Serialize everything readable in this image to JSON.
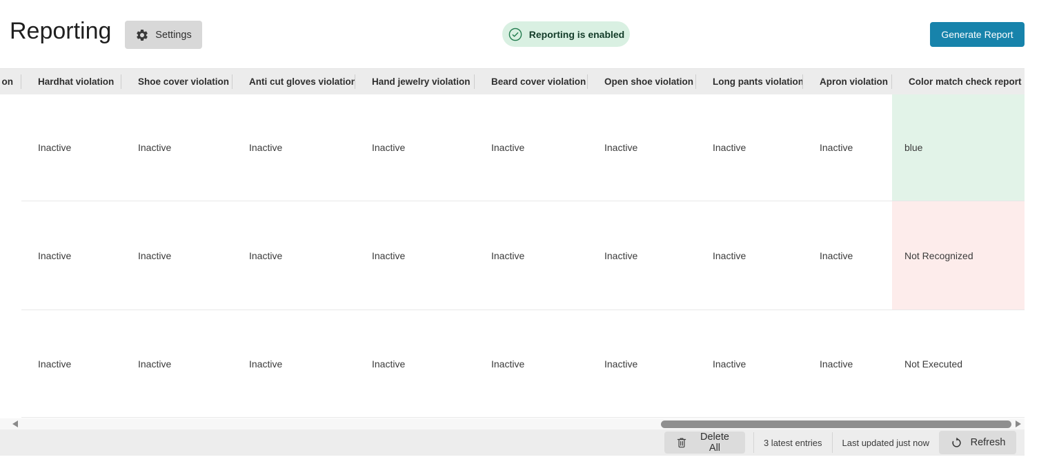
{
  "header": {
    "title": "Reporting",
    "settings_label": "Settings",
    "status_badge": "Reporting is enabled",
    "generate_report_label": "Generate Report"
  },
  "table": {
    "columns": [
      "on",
      "Hardhat violation",
      "Shoe cover violation",
      "Anti cut gloves violation",
      "Hand jewelry violation",
      "Beard cover violation",
      "Open shoe violation",
      "Long pants violation",
      "Apron violation",
      "Color match check report"
    ],
    "rows": [
      {
        "values": [
          "",
          "Inactive",
          "Inactive",
          "Inactive",
          "Inactive",
          "Inactive",
          "Inactive",
          "Inactive",
          "Inactive",
          "blue"
        ],
        "report_status": "success"
      },
      {
        "values": [
          "",
          "Inactive",
          "Inactive",
          "Inactive",
          "Inactive",
          "Inactive",
          "Inactive",
          "Inactive",
          "Inactive",
          "Not Recognized"
        ],
        "report_status": "error"
      },
      {
        "values": [
          "",
          "Inactive",
          "Inactive",
          "Inactive",
          "Inactive",
          "Inactive",
          "Inactive",
          "Inactive",
          "Inactive",
          "Not Executed"
        ],
        "report_status": "none"
      }
    ]
  },
  "footer": {
    "delete_all_label": "Delete All",
    "entries_text": "3 latest entries",
    "last_updated_text": "Last updated just now",
    "refresh_label": "Refresh"
  },
  "colors": {
    "accent": "#1783ab",
    "success_bg": "#e2f3e8",
    "error_bg": "#fdeceb",
    "badge_bg": "#d9f0e2",
    "badge_text": "#123b28"
  }
}
